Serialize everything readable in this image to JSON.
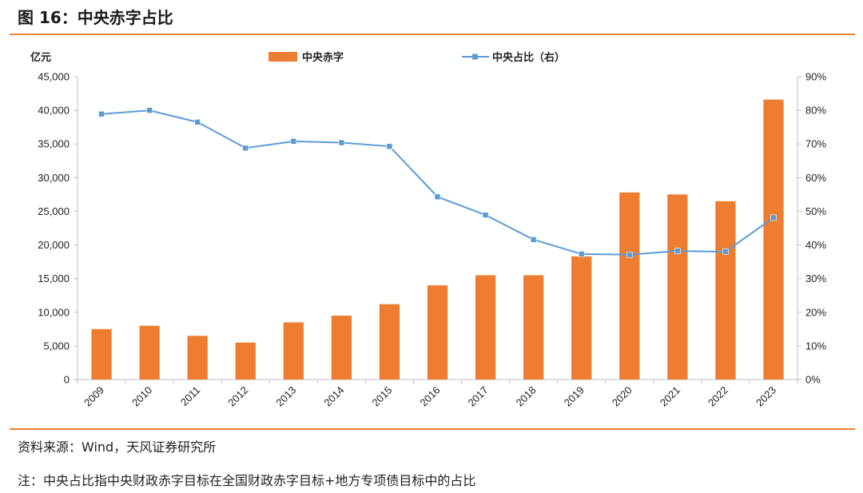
{
  "header": {
    "title": "图 16：中央赤字占比"
  },
  "footer": {
    "source": "资料来源：Wind，天风证券研究所",
    "note": "注：中央占比指中央财政赤字目标在全国财政赤字目标+地方专项债目标中的占比"
  },
  "colors": {
    "bar": "#ED7D31",
    "line": "#5B9BD5",
    "accent_rule": "#ED8033"
  },
  "chart_data": {
    "type": "bar+line",
    "categories": [
      "2009",
      "2010",
      "2011",
      "2012",
      "2013",
      "2014",
      "2015",
      "2016",
      "2017",
      "2018",
      "2019",
      "2020",
      "2021",
      "2022",
      "2023"
    ],
    "series": [
      {
        "name": "中央赤字",
        "type": "bar",
        "axis": "left",
        "values": [
          7500,
          8000,
          6500,
          5500,
          8500,
          9500,
          11200,
          14000,
          15500,
          15500,
          18300,
          27800,
          27500,
          26500,
          41600
        ]
      },
      {
        "name": "中央占比（右）",
        "type": "line",
        "axis": "right",
        "values": [
          78.9,
          80.0,
          76.5,
          68.8,
          70.8,
          70.4,
          69.3,
          54.3,
          48.9,
          41.6,
          37.3,
          37.1,
          38.2,
          38.0,
          48.1
        ]
      }
    ],
    "y_left": {
      "label": "亿元",
      "min": 0,
      "max": 45000,
      "step": 5000,
      "ticks": [
        "0",
        "5,000",
        "10,000",
        "15,000",
        "20,000",
        "25,000",
        "30,000",
        "35,000",
        "40,000",
        "45,000"
      ]
    },
    "y_right": {
      "min": 0,
      "max": 90,
      "step": 10,
      "ticks": [
        "0%",
        "10%",
        "20%",
        "30%",
        "40%",
        "50%",
        "60%",
        "70%",
        "80%",
        "90%"
      ]
    },
    "grid": false,
    "legend_position": "top-center"
  }
}
